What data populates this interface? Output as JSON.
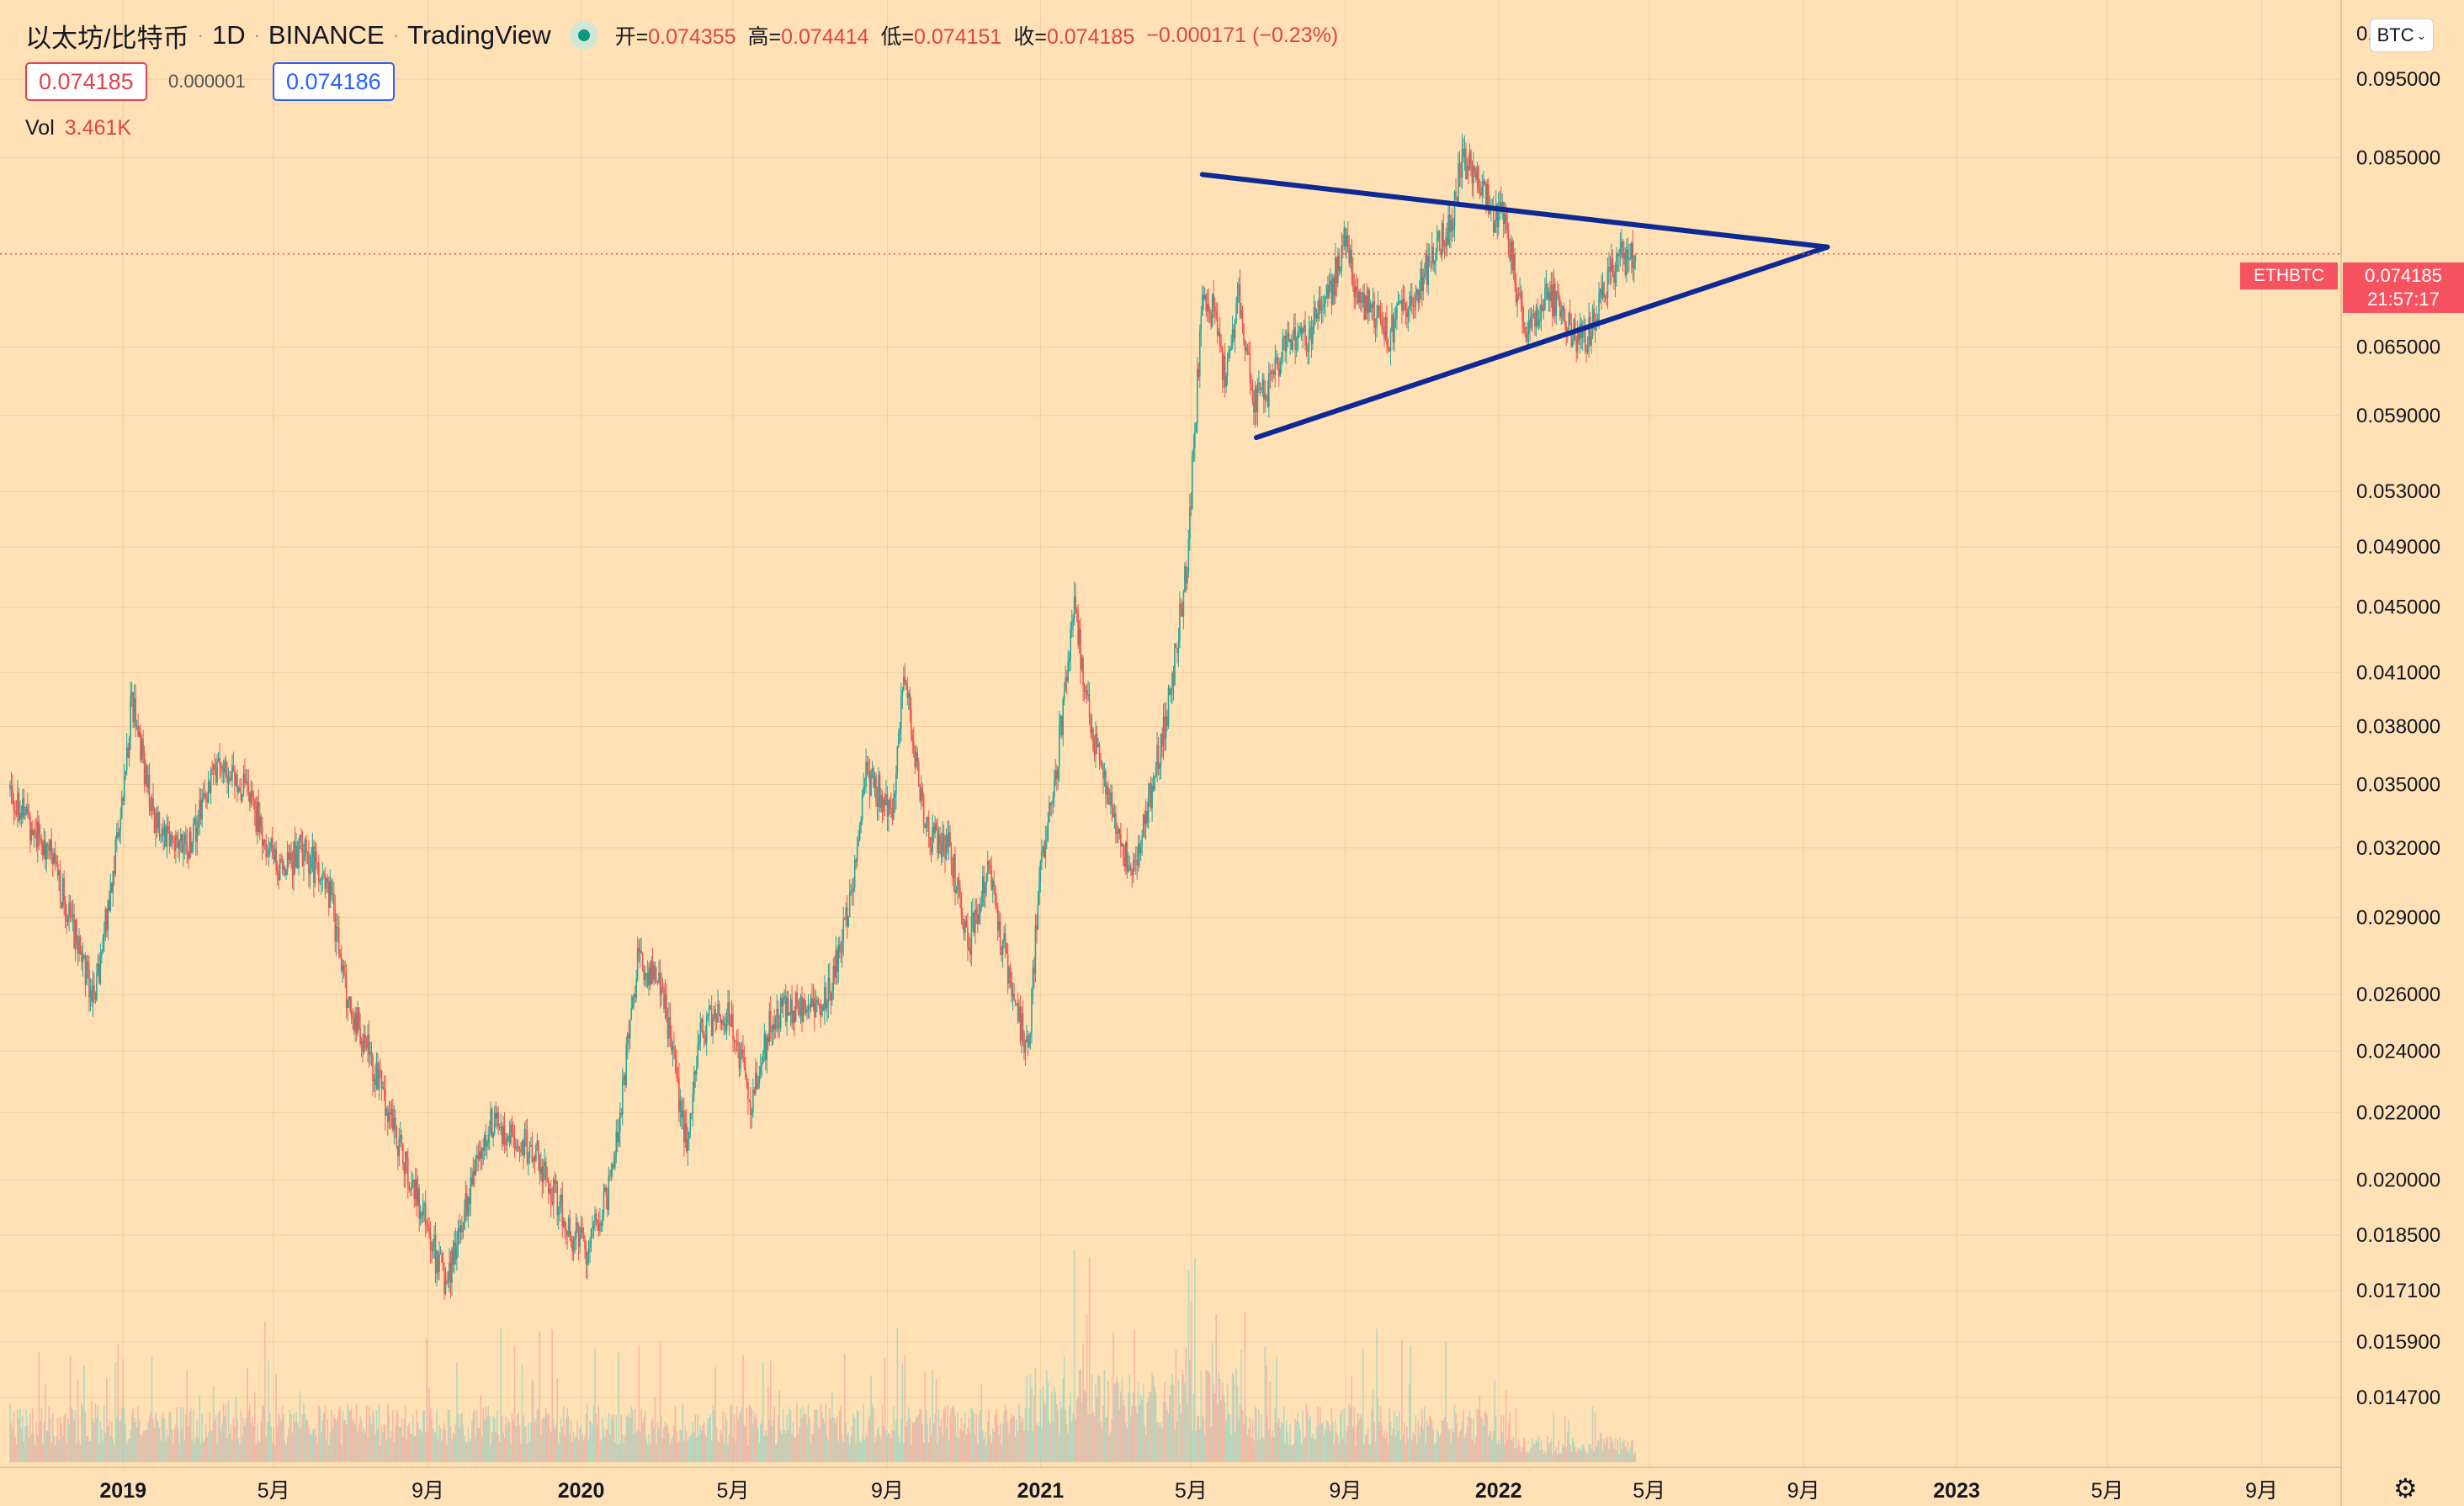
{
  "header": {
    "symbol": "以太坊/比特币",
    "interval": "1D",
    "exchange": "BINANCE",
    "source": "TradingView",
    "open_label": "开=",
    "open_value": "0.074355",
    "high_label": "高=",
    "high_value": "0.074414",
    "low_label": "低=",
    "low_value": "0.074151",
    "close_label": "收=",
    "close_value": "0.074185",
    "change": "−0.000171 (−0.23%)"
  },
  "quote": {
    "sell": "0.074185",
    "spread": "0.000001",
    "buy": "0.074186"
  },
  "volume": {
    "label": "Vol",
    "value": "3.461K"
  },
  "currency_button": "BTC",
  "price_axis": {
    "top_partial": "0.",
    "last_symbol": "ETHBTC",
    "last_price": "0.074185",
    "countdown": "21:57:17"
  },
  "colors": {
    "background": "#ffe1b5",
    "up": "#26a69a",
    "down": "#ef5350",
    "trendline": "#0d2a94",
    "last_price_tag": "#f7525f"
  },
  "chart_data": {
    "type": "candlestick",
    "scale": "log",
    "ylim": [
      0.0138,
      0.105
    ],
    "y_ticks": [
      "0.095000",
      "0.085000",
      "0.065000",
      "0.059000",
      "0.053000",
      "0.049000",
      "0.045000",
      "0.041000",
      "0.038000",
      "0.035000",
      "0.032000",
      "0.029000",
      "0.026000",
      "0.024000",
      "0.022000",
      "0.020000",
      "0.018500",
      "0.017100",
      "0.015900",
      "0.014700"
    ],
    "y_tick_values": [
      0.095,
      0.085,
      0.065,
      0.059,
      0.053,
      0.049,
      0.045,
      0.041,
      0.038,
      0.035,
      0.032,
      0.029,
      0.026,
      0.024,
      0.022,
      0.02,
      0.0185,
      0.0171,
      0.0159,
      0.0147
    ],
    "x_labels": [
      "2019",
      "5月",
      "9月",
      "2020",
      "5月",
      "9月",
      "2021",
      "5月",
      "9月",
      "2022",
      "5月",
      "9月",
      "2023",
      "5月",
      "9月"
    ],
    "x_label_dates": [
      "2019-01-01",
      "2019-05-01",
      "2019-09-01",
      "2020-01-01",
      "2020-05-01",
      "2020-09-01",
      "2021-01-01",
      "2021-05-01",
      "2021-09-01",
      "2022-01-01",
      "2022-05-01",
      "2022-09-01",
      "2023-01-01",
      "2023-05-01",
      "2023-09-01"
    ],
    "x_label_bold": [
      true,
      false,
      false,
      true,
      false,
      false,
      true,
      false,
      false,
      true,
      false,
      false,
      true,
      false,
      false
    ],
    "x_range": [
      "2018-10-03",
      "2023-10-25"
    ],
    "price_path": [
      [
        "2018-10-03",
        0.0348
      ],
      [
        "2018-11-05",
        0.0315
      ],
      [
        "2018-12-10",
        0.0258
      ],
      [
        "2019-01-01",
        0.0345
      ],
      [
        "2019-01-08",
        0.0395
      ],
      [
        "2019-01-25",
        0.0335
      ],
      [
        "2019-02-20",
        0.0318
      ],
      [
        "2019-03-18",
        0.036
      ],
      [
        "2019-04-10",
        0.0345
      ],
      [
        "2019-05-05",
        0.031
      ],
      [
        "2019-05-25",
        0.032
      ],
      [
        "2019-06-15",
        0.03
      ],
      [
        "2019-06-28",
        0.026
      ],
      [
        "2019-07-10",
        0.0246
      ],
      [
        "2019-08-01",
        0.022
      ],
      [
        "2019-08-25",
        0.0193
      ],
      [
        "2019-09-15",
        0.0172
      ],
      [
        "2019-10-01",
        0.0193
      ],
      [
        "2019-10-20",
        0.0218
      ],
      [
        "2019-11-10",
        0.0212
      ],
      [
        "2019-11-25",
        0.0208
      ],
      [
        "2019-12-25",
        0.0185
      ],
      [
        "2020-01-05",
        0.0182
      ],
      [
        "2020-01-25",
        0.0198
      ],
      [
        "2020-02-15",
        0.0272
      ],
      [
        "2020-03-05",
        0.0265
      ],
      [
        "2020-03-12",
        0.0244
      ],
      [
        "2020-03-25",
        0.021
      ],
      [
        "2020-04-05",
        0.0245
      ],
      [
        "2020-04-20",
        0.0255
      ],
      [
        "2020-05-01",
        0.025
      ],
      [
        "2020-05-15",
        0.0221
      ],
      [
        "2020-06-01",
        0.0252
      ],
      [
        "2020-06-25",
        0.0256
      ],
      [
        "2020-07-15",
        0.0258
      ],
      [
        "2020-08-03",
        0.03
      ],
      [
        "2020-08-15",
        0.0353
      ],
      [
        "2020-09-05",
        0.034
      ],
      [
        "2020-09-15",
        0.041
      ],
      [
        "2020-10-01",
        0.0328
      ],
      [
        "2020-10-20",
        0.032
      ],
      [
        "2020-11-05",
        0.028
      ],
      [
        "2020-11-20",
        0.0312
      ],
      [
        "2020-12-05",
        0.0272
      ],
      [
        "2020-12-22",
        0.0238
      ],
      [
        "2021-01-01",
        0.0312
      ],
      [
        "2021-01-12",
        0.035
      ],
      [
        "2021-01-28",
        0.045
      ],
      [
        "2021-02-10",
        0.038
      ],
      [
        "2021-02-28",
        0.0335
      ],
      [
        "2021-03-15",
        0.0305
      ],
      [
        "2021-03-30",
        0.0345
      ],
      [
        "2021-04-15",
        0.04
      ],
      [
        "2021-04-28",
        0.048
      ],
      [
        "2021-05-10",
        0.07
      ],
      [
        "2021-05-20",
        0.068
      ],
      [
        "2021-05-28",
        0.062
      ],
      [
        "2021-06-08",
        0.07
      ],
      [
        "2021-06-20",
        0.06
      ],
      [
        "2021-07-01",
        0.061
      ],
      [
        "2021-07-15",
        0.065
      ],
      [
        "2021-08-01",
        0.066
      ],
      [
        "2021-08-20",
        0.07
      ],
      [
        "2021-09-01",
        0.0765
      ],
      [
        "2021-09-10",
        0.07
      ],
      [
        "2021-09-25",
        0.068
      ],
      [
        "2021-10-05",
        0.066
      ],
      [
        "2021-10-25",
        0.07
      ],
      [
        "2021-11-10",
        0.074
      ],
      [
        "2021-11-25",
        0.078
      ],
      [
        "2021-12-03",
        0.085
      ],
      [
        "2021-12-15",
        0.083
      ],
      [
        "2021-12-28",
        0.078
      ],
      [
        "2022-01-05",
        0.079
      ],
      [
        "2022-01-15",
        0.071
      ],
      [
        "2022-01-25",
        0.066
      ],
      [
        "2022-02-05",
        0.07
      ],
      [
        "2022-02-20",
        0.069
      ],
      [
        "2022-03-01",
        0.066
      ],
      [
        "2022-03-12",
        0.0655
      ],
      [
        "2022-03-25",
        0.07
      ],
      [
        "2022-04-05",
        0.0735
      ],
      [
        "2022-04-20",
        0.0742
      ]
    ],
    "price_range": [
      0.016,
      0.088
    ],
    "trendlines": [
      {
        "from": [
          "2021-05-10",
          0.083
        ],
        "to": [
          "2022-09-20",
          0.0749
        ]
      },
      {
        "from": [
          "2021-06-22",
          0.0572
        ],
        "to": [
          "2022-09-20",
          0.0749
        ]
      }
    ]
  }
}
